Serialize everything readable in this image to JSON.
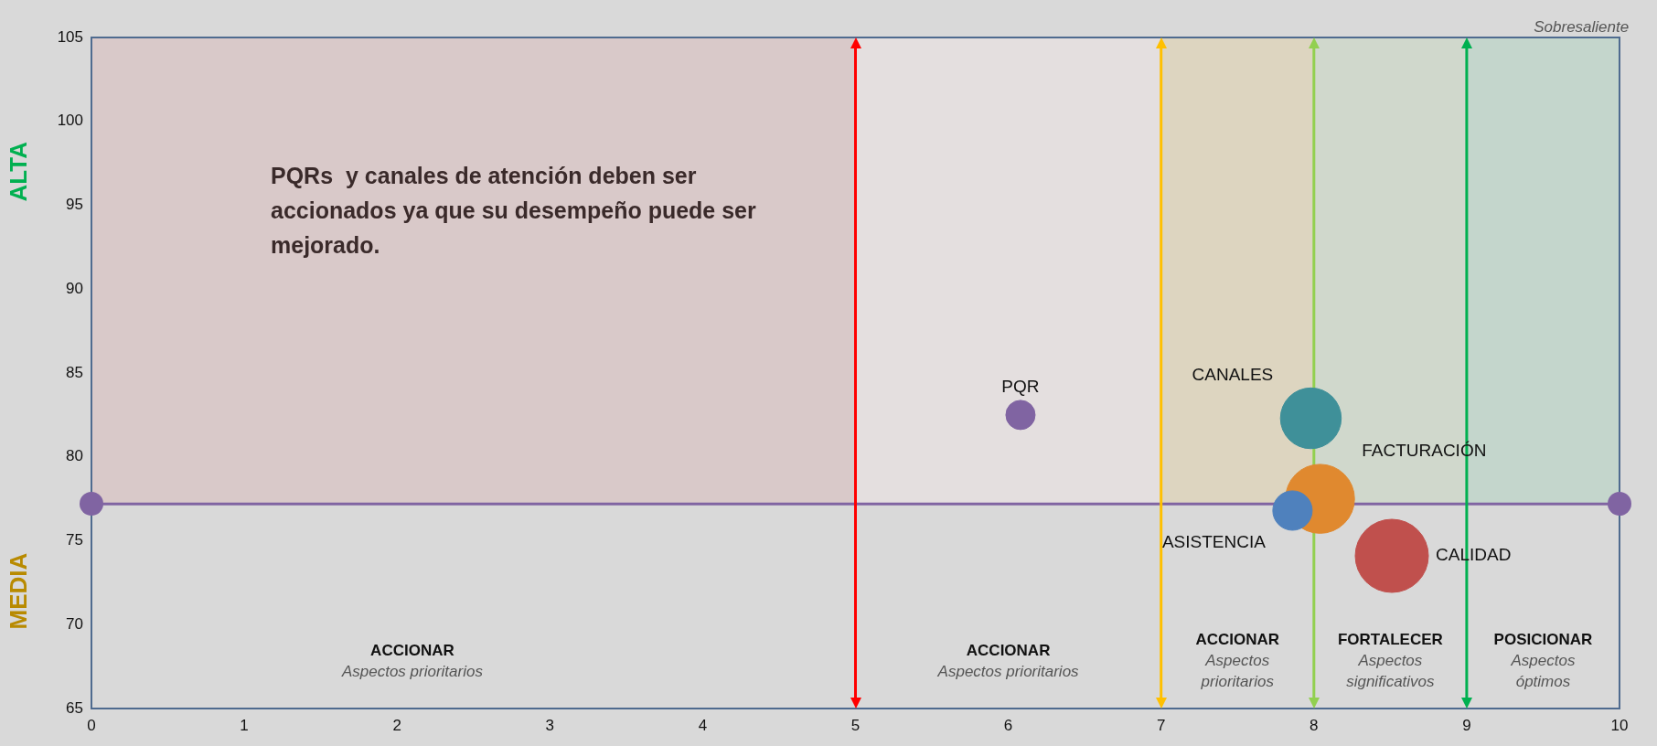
{
  "chart_data": {
    "type": "bubble",
    "xlim": [
      0,
      10
    ],
    "xticks": [
      0,
      1,
      2,
      3,
      4,
      5,
      6,
      7,
      8,
      9,
      10
    ],
    "ylim": [
      65,
      105
    ],
    "yticks": [
      65,
      70,
      75,
      80,
      85,
      90,
      95,
      100,
      105
    ],
    "grid": false,
    "legend": false,
    "series": [
      {
        "name": "PQR",
        "color": "#8064a2",
        "x": [
          6.08
        ],
        "values": [
          82.5
        ],
        "sizes": [
          0.16
        ]
      },
      {
        "name": "CANALES",
        "color": "#3f9099",
        "x": [
          7.98
        ],
        "values": [
          82.3
        ],
        "sizes": [
          0.69
        ]
      },
      {
        "name": "FACTURACIÓN",
        "color": "#e0892f",
        "x": [
          8.04
        ],
        "values": [
          77.5
        ],
        "sizes": [
          0.89
        ]
      },
      {
        "name": "ASISTENCIA",
        "color": "#4f81bd",
        "x": [
          7.86
        ],
        "values": [
          76.8
        ],
        "sizes": [
          0.29
        ]
      },
      {
        "name": "CALIDAD",
        "color": "#c0504d",
        "x": [
          8.51
        ],
        "values": [
          74.1
        ],
        "sizes": [
          1
        ]
      }
    ],
    "ref_lines": [
      {
        "axis": "y",
        "value": 77.2,
        "color": "#8064a2"
      },
      {
        "axis": "x",
        "value": 5,
        "color": "#ff0000"
      },
      {
        "axis": "x",
        "value": 7,
        "color": "#ffc000"
      },
      {
        "axis": "x",
        "value": 8,
        "color": "#92d050"
      },
      {
        "axis": "x",
        "value": 9,
        "color": "#00b050"
      }
    ],
    "bands": [
      {
        "axis": "x",
        "from": 0,
        "to": 5,
        "color": "#d9c9c9"
      },
      {
        "axis": "x",
        "from": 5,
        "to": 7,
        "color": "#e4dfdf"
      },
      {
        "axis": "x",
        "from": 7,
        "to": 8,
        "color": "#ddd5c0"
      },
      {
        "axis": "x",
        "from": 8,
        "to": 9,
        "color": "#d0d8cc"
      },
      {
        "axis": "x",
        "from": 9,
        "to": 10,
        "color": "#c4d6cc"
      }
    ],
    "annotations": [
      "PQRs  y canales de atención deben ser accionados ya que su desempeño puede ser mejorado.",
      "ALTA",
      "MEDIA",
      "Sobresaliente",
      "ACCIONAR\nAspectos prioritarios",
      "ACCIONAR\nAspectos prioritarios",
      "ACCIONAR\nAspectos\nprioritarios",
      "FORTALECER\nAspectos\nsignificativos",
      "POSICIONAR\nAspectos\nóptimos"
    ]
  }
}
